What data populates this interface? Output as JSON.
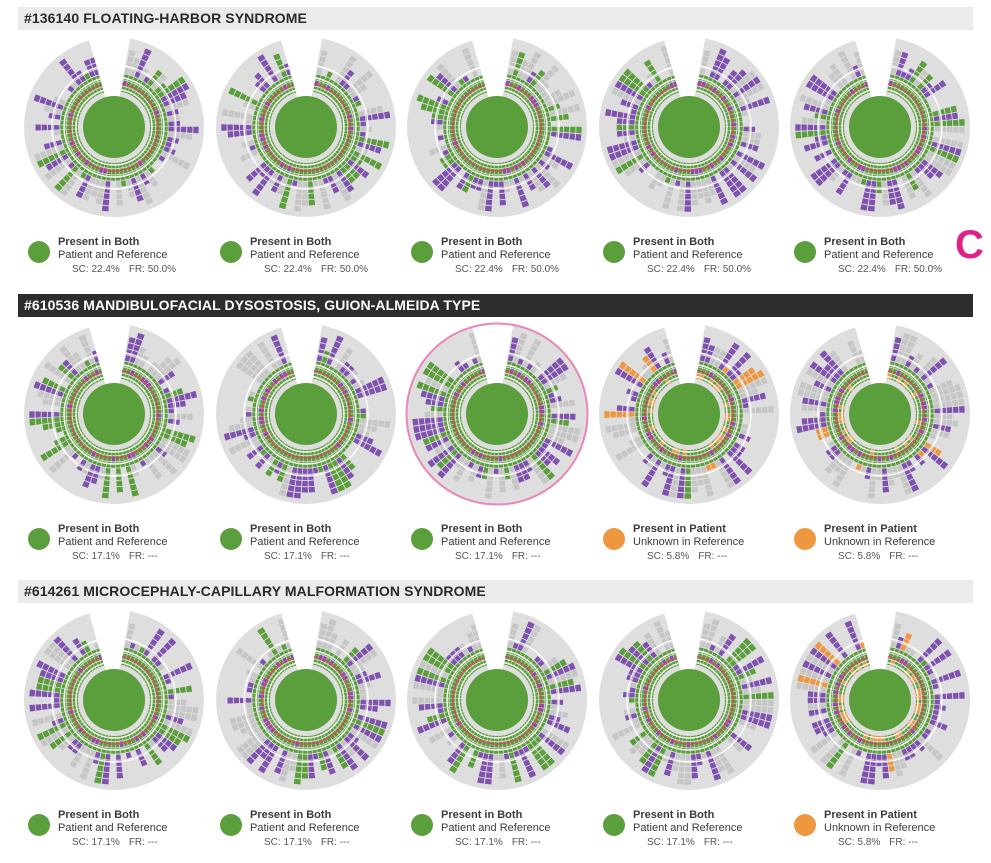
{
  "panel_letter": "C",
  "colors": {
    "present_both": "#5b9e3c",
    "present_patient": "#ee9640",
    "patient_only_purple": "#8052b0",
    "unknown_gray": "#c6c6c6",
    "header_bg": "#ebebeb",
    "header_active_bg": "#2d2d2d",
    "highlight_ring": "#e887b8",
    "annotation_pink": "#e0218a"
  },
  "sections": [
    {
      "title": "#136140 FLOATING-HARBOR SYNDROME",
      "active": false,
      "cards": [
        {
          "status": "present_both",
          "line1": "Present in Both",
          "line2": "Patient and Reference",
          "sc": "SC: 22.4%",
          "fr": "FR: 50.0%",
          "highlighted": false
        },
        {
          "status": "present_both",
          "line1": "Present in Both",
          "line2": "Patient and Reference",
          "sc": "SC: 22.4%",
          "fr": "FR: 50.0%",
          "highlighted": false
        },
        {
          "status": "present_both",
          "line1": "Present in Both",
          "line2": "Patient and Reference",
          "sc": "SC: 22.4%",
          "fr": "FR: 50.0%",
          "highlighted": false
        },
        {
          "status": "present_both",
          "line1": "Present in Both",
          "line2": "Patient and Reference",
          "sc": "SC: 22.4%",
          "fr": "FR: 50.0%",
          "highlighted": false
        },
        {
          "status": "present_both",
          "line1": "Present in Both",
          "line2": "Patient and Reference",
          "sc": "SC: 22.4%",
          "fr": "FR: 50.0%",
          "highlighted": false
        }
      ]
    },
    {
      "title": "#610536 MANDIBULOFACIAL DYSOSTOSIS, GUION-ALMEIDA TYPE",
      "active": true,
      "cards": [
        {
          "status": "present_both",
          "line1": "Present in Both",
          "line2": "Patient and Reference",
          "sc": "SC: 17.1%",
          "fr": "FR: ---",
          "highlighted": false
        },
        {
          "status": "present_both",
          "line1": "Present in Both",
          "line2": "Patient and Reference",
          "sc": "SC: 17.1%",
          "fr": "FR: ---",
          "highlighted": false
        },
        {
          "status": "present_both",
          "line1": "Present in Both",
          "line2": "Patient and Reference",
          "sc": "SC: 17.1%",
          "fr": "FR: ---",
          "highlighted": true
        },
        {
          "status": "present_patient",
          "line1": "Present in Patient",
          "line2": "Unknown in Reference",
          "sc": "SC: 5.8%",
          "fr": "FR: ---",
          "highlighted": false
        },
        {
          "status": "present_patient",
          "line1": "Present in Patient",
          "line2": "Unknown in Reference",
          "sc": "SC: 5.8%",
          "fr": "FR: ---",
          "highlighted": false
        }
      ]
    },
    {
      "title": "#614261 MICROCEPHALY-CAPILLARY MALFORMATION SYNDROME",
      "active": false,
      "cards": [
        {
          "status": "present_both",
          "line1": "Present in Both",
          "line2": "Patient and Reference",
          "sc": "SC: 17.1%",
          "fr": "FR: ---",
          "highlighted": false
        },
        {
          "status": "present_both",
          "line1": "Present in Both",
          "line2": "Patient and Reference",
          "sc": "SC: 17.1%",
          "fr": "FR: ---",
          "highlighted": false
        },
        {
          "status": "present_both",
          "line1": "Present in Both",
          "line2": "Patient and Reference",
          "sc": "SC: 17.1%",
          "fr": "FR: ---",
          "highlighted": false
        },
        {
          "status": "present_both",
          "line1": "Present in Both",
          "line2": "Patient and Reference",
          "sc": "SC: 17.1%",
          "fr": "FR: ---",
          "highlighted": false
        },
        {
          "status": "present_patient",
          "line1": "Present in Patient",
          "line2": "Unknown in Reference",
          "sc": "SC: 5.8%",
          "fr": "FR: ---",
          "highlighted": false
        }
      ]
    }
  ]
}
